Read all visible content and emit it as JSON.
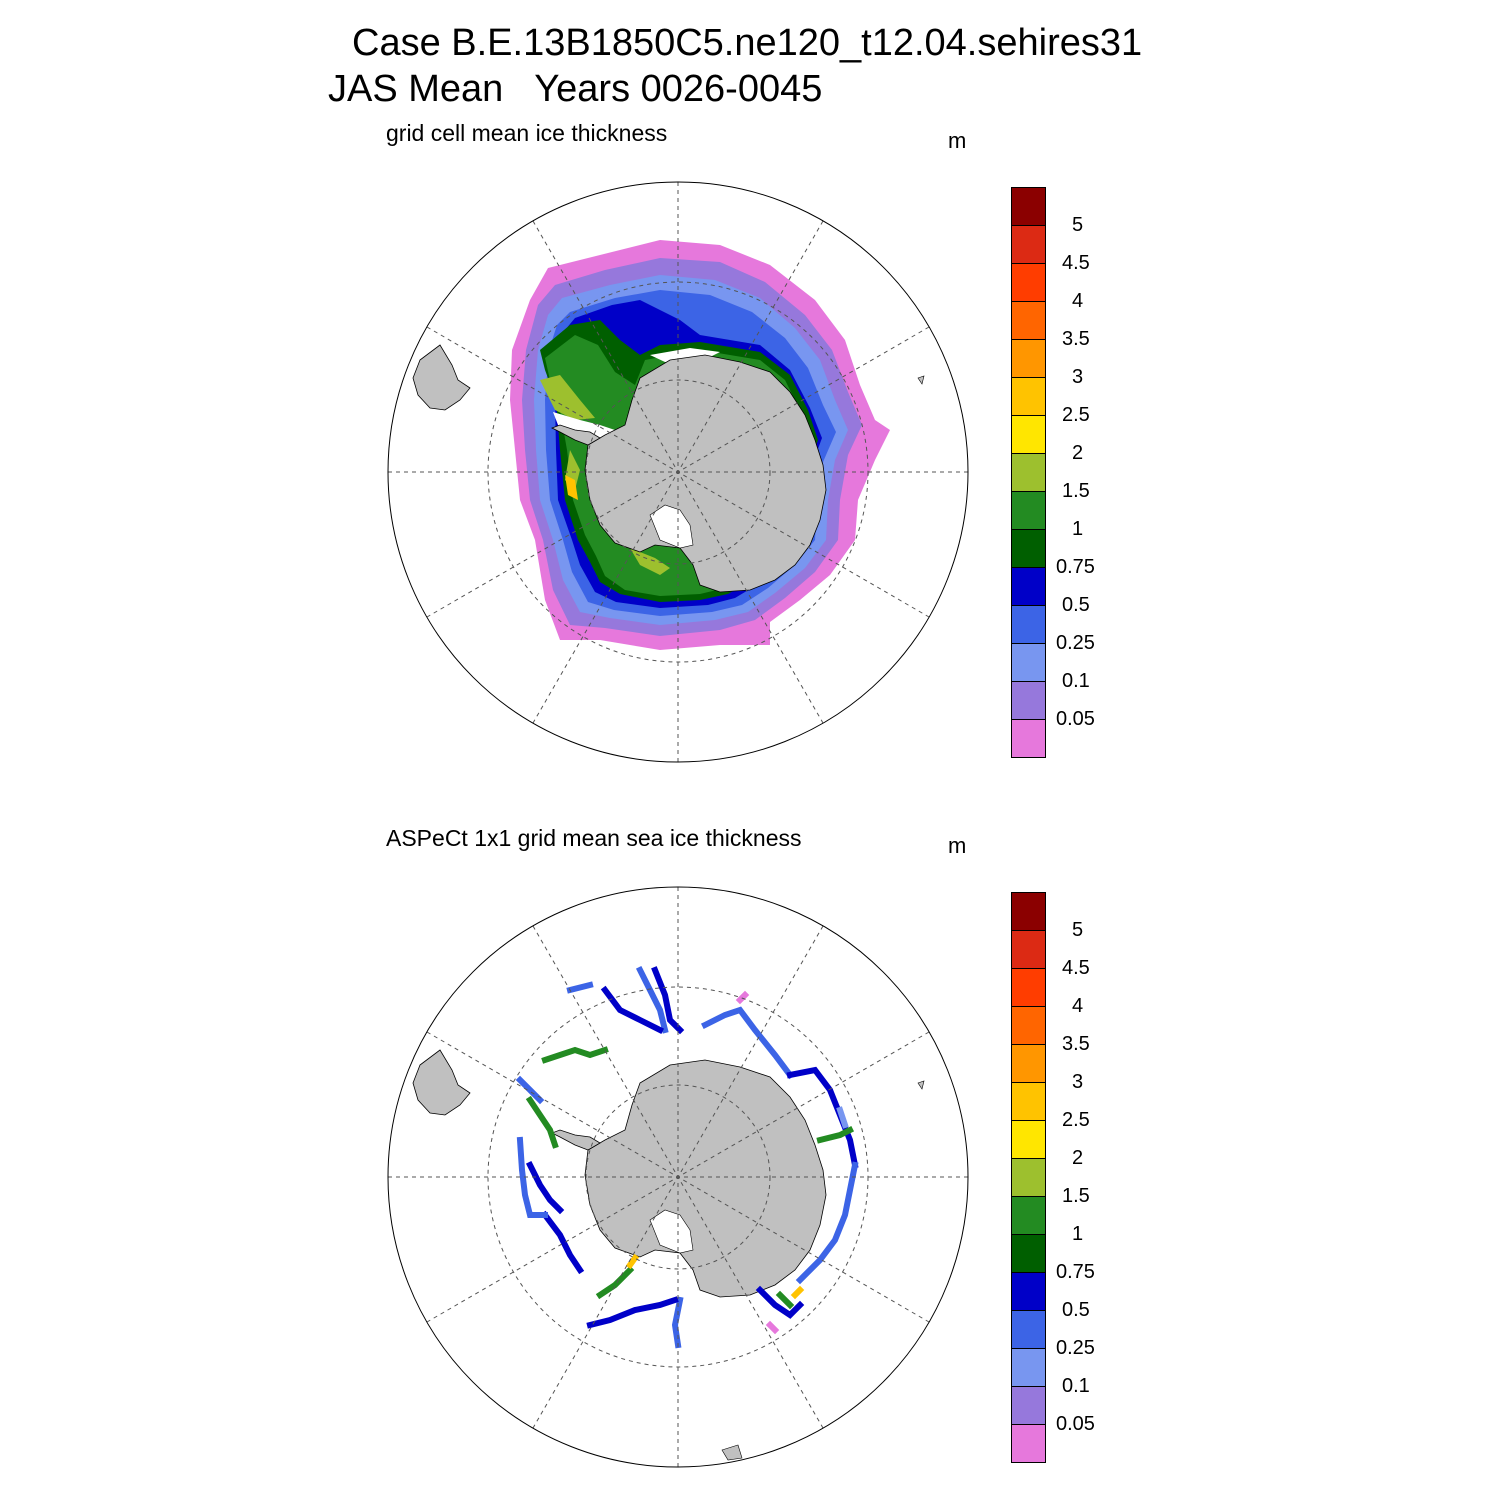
{
  "figure": {
    "title_line1": "Case B.E.13B1850C5.ne120_t12.04.sehires31",
    "title_line2": "JAS Mean   Years 0026-0045"
  },
  "colors": {
    "land": "#c0c0c0",
    "ocean": "#ffffff",
    "grid": "#555555",
    "outline": "#000000"
  },
  "panels": [
    {
      "id": "model",
      "title": "grid cell mean ice thickness",
      "units": "m",
      "colorbar": {
        "levels": [
          "5",
          "4.5",
          "4",
          "3.5",
          "3",
          "2.5",
          "2",
          "1.5",
          "1",
          "0.75",
          "0.5",
          "0.25",
          "0.1",
          "0.05"
        ],
        "colors": [
          "#8b0000",
          "#dc2a14",
          "#ff3d00",
          "#ff6500",
          "#ff9600",
          "#ffc300",
          "#ffe600",
          "#9dc02e",
          "#238b22",
          "#005f00",
          "#0000c8",
          "#3c64e6",
          "#7896f0",
          "#9678dc",
          "#e678dc"
        ]
      }
    },
    {
      "id": "observed",
      "title": "ASPeCt 1x1 grid mean sea ice thickness",
      "units": "m",
      "colorbar": {
        "levels": [
          "5",
          "4.5",
          "4",
          "3.5",
          "3",
          "2.5",
          "2",
          "1.5",
          "1",
          "0.75",
          "0.5",
          "0.25",
          "0.1",
          "0.05"
        ],
        "colors": [
          "#8b0000",
          "#dc2a14",
          "#ff3d00",
          "#ff6500",
          "#ff9600",
          "#ffc300",
          "#ffe600",
          "#9dc02e",
          "#238b22",
          "#005f00",
          "#0000c8",
          "#3c64e6",
          "#7896f0",
          "#9678dc",
          "#e678dc"
        ]
      }
    }
  ]
}
